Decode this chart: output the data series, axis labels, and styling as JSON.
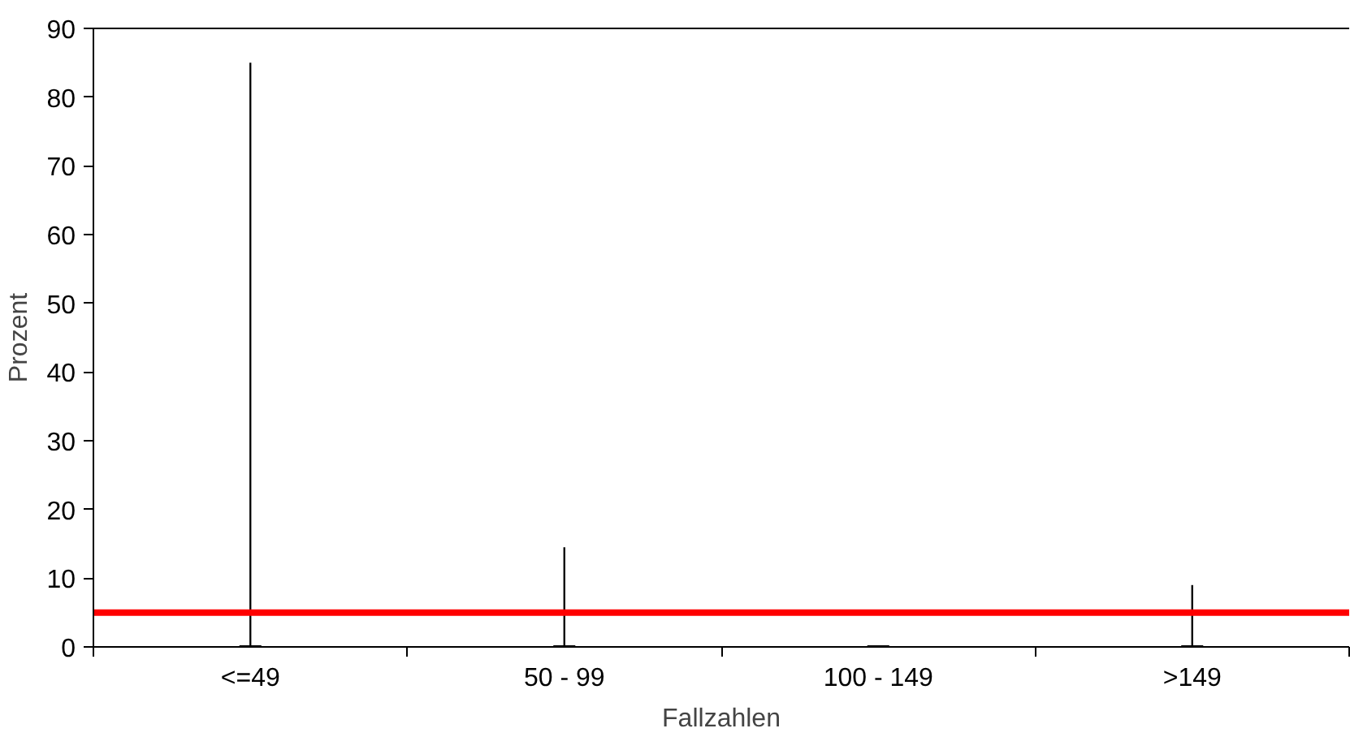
{
  "chart_data": {
    "type": "bar",
    "xlabel": "Fallzahlen",
    "ylabel": "Prozent",
    "categories": [
      "<=49",
      "50 - 99",
      "100 - 149",
      ">149"
    ],
    "series": [
      {
        "color": "#000000",
        "values": [
          85,
          14.5,
          0,
          9
        ]
      }
    ],
    "ylim": [
      0,
      90
    ],
    "yticks": [
      0,
      10,
      20,
      30,
      40,
      50,
      60,
      70,
      80,
      90
    ],
    "ref_lines": [
      {
        "axis": "y",
        "value": 5,
        "color": "#ff0000"
      }
    ],
    "grid": false
  }
}
